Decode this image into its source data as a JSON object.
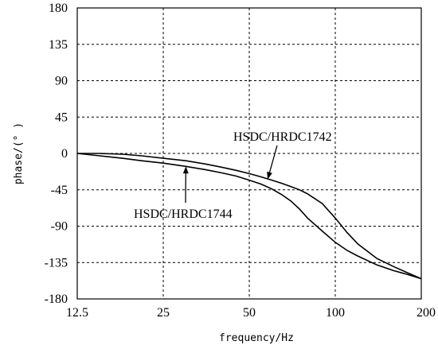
{
  "chart_data": {
    "type": "line",
    "title": "",
    "xlabel": "frequency/Hz",
    "ylabel": "phase/(° )",
    "x_scale": "log",
    "xlim": [
      12.5,
      200
    ],
    "ylim": [
      -180,
      180
    ],
    "grid": true,
    "x_ticks": [
      12.5,
      25,
      50,
      100,
      200
    ],
    "x_tick_labels": [
      "12.5",
      "25",
      "50",
      "100",
      "200"
    ],
    "y_ticks": [
      180,
      135,
      90,
      45,
      0,
      -45,
      -90,
      -135,
      -180
    ],
    "y_tick_labels": [
      "180",
      "135",
      "90",
      "45",
      "0",
      "-45",
      "-90",
      "-135",
      "-180"
    ],
    "series": [
      {
        "name": "HSDC/HRDC1742",
        "x": [
          12.5,
          15,
          18,
          21,
          25,
          30,
          35,
          40,
          45,
          50,
          55,
          60,
          65,
          70,
          75,
          80,
          90,
          100,
          110,
          120,
          140,
          160,
          180,
          200
        ],
        "y": [
          0,
          0,
          -1,
          -3,
          -6,
          -9,
          -13,
          -17,
          -21,
          -25,
          -29,
          -33,
          -37,
          -41,
          -45,
          -50,
          -62,
          -80,
          -98,
          -112,
          -130,
          -140,
          -148,
          -155
        ]
      },
      {
        "name": "HSDC/HRDC1744",
        "x": [
          12.5,
          15,
          18,
          21,
          25,
          30,
          35,
          40,
          45,
          50,
          55,
          60,
          65,
          70,
          75,
          80,
          90,
          100,
          110,
          120,
          140,
          160,
          180,
          200
        ],
        "y": [
          0,
          -3,
          -6,
          -9,
          -12,
          -16,
          -20,
          -24,
          -28,
          -33,
          -38,
          -44,
          -51,
          -59,
          -69,
          -80,
          -96,
          -110,
          -120,
          -127,
          -138,
          -145,
          -150,
          -155
        ]
      }
    ],
    "annotations": [
      {
        "text": "HSDC/HRDC1742",
        "arrow_to": [
          58,
          -32
        ]
      },
      {
        "text": "HSDC/HRDC1744",
        "arrow_to": [
          30,
          -16
        ]
      }
    ]
  }
}
